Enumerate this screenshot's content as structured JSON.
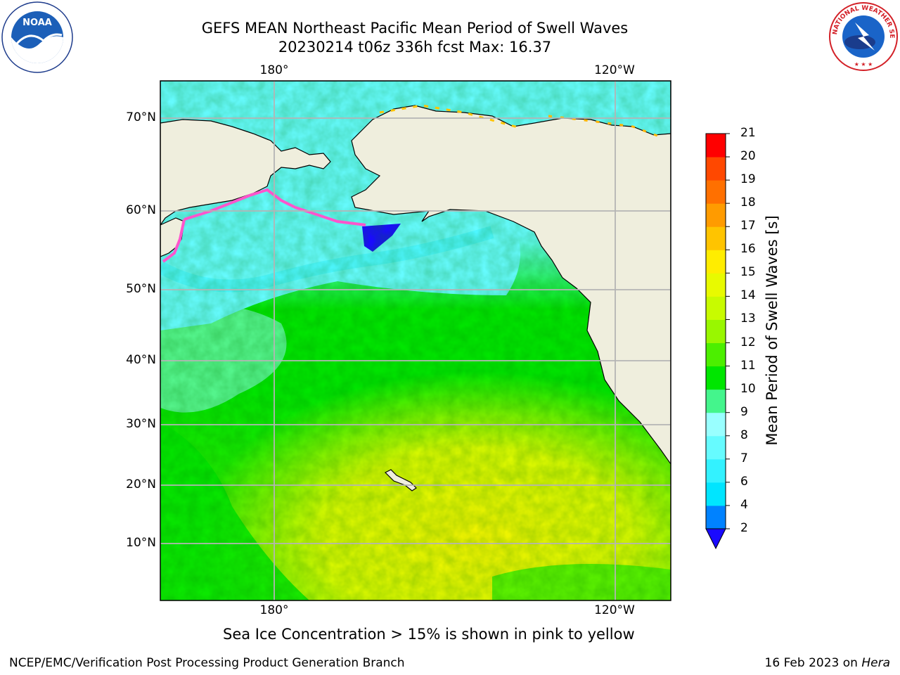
{
  "title_line1": "GEFS MEAN Northeast Pacific Mean Period of Swell Waves",
  "title_line2": "20230214 t06z 336h fcst   Max: 16.37",
  "lon_labels_top": [
    "180°",
    "120°W"
  ],
  "lon_labels_bottom": [
    "180°",
    "120°W"
  ],
  "lat_labels": [
    "70°N",
    "60°N",
    "50°N",
    "40°N",
    "30°N",
    "20°N",
    "10°N"
  ],
  "colorbar": {
    "title": "Mean Period of Swell Waves [s]",
    "ticks": [
      "2",
      "4",
      "6",
      "7",
      "8",
      "9",
      "10",
      "11",
      "12",
      "13",
      "14",
      "15",
      "16",
      "17",
      "18",
      "19",
      "20",
      "21"
    ],
    "colors": [
      "#0039e6",
      "#0082ff",
      "#00e5ff",
      "#33f2ff",
      "#66fbff",
      "#99ffff",
      "#44f58c",
      "#00e600",
      "#4cef00",
      "#99f700",
      "#c8fb00",
      "#e8fa00",
      "#ffed00",
      "#ffc400",
      "#ff9b00",
      "#ff7000",
      "#ff4800",
      "#ff0000"
    ],
    "under_color": "#1a0aff"
  },
  "ice_note": "Sea Ice Concentration > 15% is shown in pink to yellow",
  "footer_left": "NCEP/EMC/Verification Post Processing Product Generation Branch",
  "footer_right_prefix": "16 Feb 2023 on ",
  "footer_right_host": "Hera",
  "logos": {
    "left": "NOAA",
    "right_text": "NATIONAL WEATHER SERVICE"
  },
  "colors": {
    "land": "#efeedd",
    "grid": "#b4b4b4",
    "ocean_blue": "#66fbff",
    "ocean_green": "#00e600",
    "ocean_yellow": "#e8fa00",
    "ice_pink": "#ff55cc"
  }
}
